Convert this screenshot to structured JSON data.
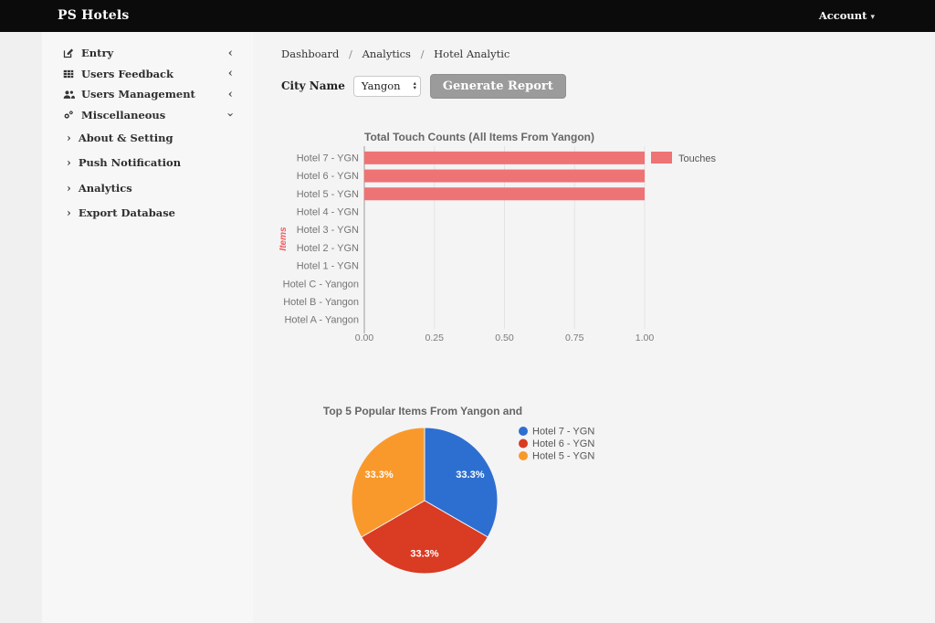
{
  "navbar": {
    "brand": "PS Hotels",
    "account_label": "Account"
  },
  "sidebar": {
    "items": [
      {
        "label": "Entry",
        "icon": "pencil-square-icon",
        "state": "collapsed"
      },
      {
        "label": "Users Feedback",
        "icon": "table-icon",
        "state": "collapsed"
      },
      {
        "label": "Users Management",
        "icon": "users-icon",
        "state": "collapsed"
      },
      {
        "label": "Miscellaneous",
        "icon": "gears-icon",
        "state": "expanded"
      }
    ],
    "subitems": [
      {
        "label": "About & Setting"
      },
      {
        "label": "Push Notification"
      },
      {
        "label": "Analytics"
      },
      {
        "label": "Export Database"
      }
    ]
  },
  "breadcrumb": {
    "items": [
      "Dashboard",
      "Analytics",
      "Hotel Analytic"
    ],
    "separator": "/"
  },
  "report_form": {
    "city_label": "City Name",
    "city_value": "Yangon",
    "generate_button": "Generate Report"
  },
  "chart_data": [
    {
      "type": "bar",
      "orientation": "horizontal",
      "title": "Total Touch Counts (All Items From Yangon)",
      "categories": [
        "Hotel 7 - YGN",
        "Hotel 6 - YGN",
        "Hotel 5 - YGN",
        "Hotel 4 - YGN",
        "Hotel 3 - YGN",
        "Hotel 2 - YGN",
        "Hotel 1 - YGN",
        "Hotel C - Yangon",
        "Hotel B - Yangon",
        "Hotel A - Yangon"
      ],
      "series": [
        {
          "name": "Touches",
          "color": "#ee7374",
          "values": [
            1,
            1,
            1,
            0,
            0,
            0,
            0,
            0,
            0,
            0
          ]
        }
      ],
      "ylabel": "Items",
      "ylabel_color": "#f25c5e",
      "xlim": [
        0,
        1
      ],
      "xticks": [
        "0.00",
        "0.25",
        "0.50",
        "0.75",
        "1.00"
      ],
      "grid": true,
      "legend_position": "top-right"
    },
    {
      "type": "pie",
      "title": "Top 5 Popular Items From Yangon and",
      "start_angle_deg": -90,
      "legend_position": "right",
      "slices": [
        {
          "label": "Hotel 7 - YGN",
          "value": 33.3,
          "display": "33.3%",
          "color": "#2d6fd1"
        },
        {
          "label": "Hotel 6 - YGN",
          "value": 33.3,
          "display": "33.3%",
          "color": "#d93b23"
        },
        {
          "label": "Hotel 5 - YGN",
          "value": 33.3,
          "display": "33.3%",
          "color": "#f9992b"
        }
      ]
    }
  ]
}
